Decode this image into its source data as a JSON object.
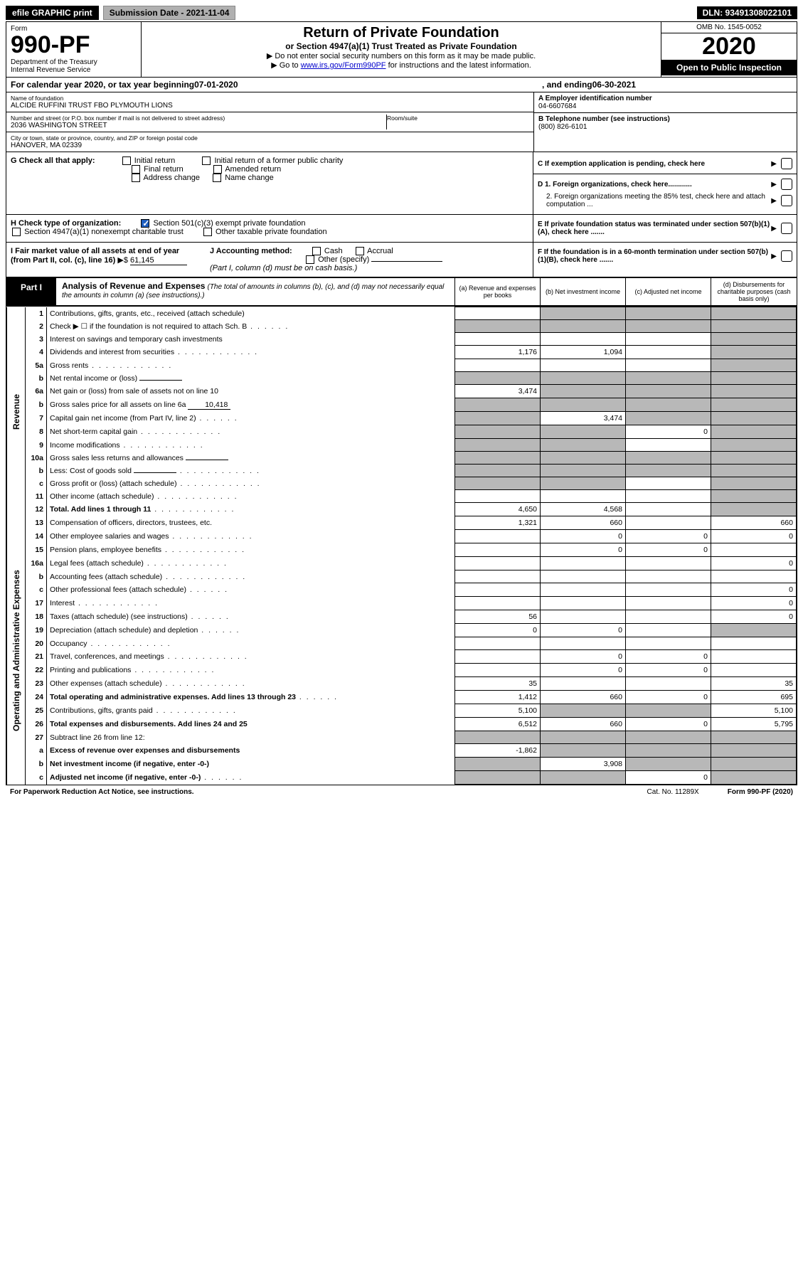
{
  "topbar": {
    "efile": "efile GRAPHIC print",
    "submission": "Submission Date - 2021-11-04",
    "dln": "DLN: 93491308022101"
  },
  "header": {
    "form_word": "Form",
    "form_number": "990-PF",
    "dept": "Department of the Treasury\nInternal Revenue Service",
    "title": "Return of Private Foundation",
    "subtitle": "or Section 4947(a)(1) Trust Treated as Private Foundation",
    "instr1": "▶ Do not enter social security numbers on this form as it may be made public.",
    "instr2_pre": "▶ Go to ",
    "instr2_link": "www.irs.gov/Form990PF",
    "instr2_post": " for instructions and the latest information.",
    "omb": "OMB No. 1545-0052",
    "year": "2020",
    "open": "Open to Public Inspection"
  },
  "calendar": {
    "pre": "For calendar year 2020, or tax year beginning ",
    "begin": "07-01-2020",
    "mid": ", and ending ",
    "end": "06-30-2021"
  },
  "info": {
    "name_label": "Name of foundation",
    "name": "ALCIDE RUFFINI TRUST FBO PLYMOUTH LIONS",
    "addr_label": "Number and street (or P.O. box number if mail is not delivered to street address)",
    "addr": "2036 WASHINGTON STREET",
    "room_label": "Room/suite",
    "city_label": "City or town, state or province, country, and ZIP or foreign postal code",
    "city": "HANOVER, MA  02339",
    "a_label": "A Employer identification number",
    "a_val": "04-6607684",
    "b_label": "B Telephone number (see instructions)",
    "b_val": "(800) 826-6101",
    "c_label": "C If exemption application is pending, check here",
    "d1": "D 1. Foreign organizations, check here............",
    "d2": "2. Foreign organizations meeting the 85% test, check here and attach computation ...",
    "e_label": "E  If private foundation status was terminated under section 507(b)(1)(A), check here .......",
    "f_label": "F  If the foundation is in a 60-month termination under section 507(b)(1)(B), check here ......."
  },
  "g": {
    "label": "G Check all that apply:",
    "opts": [
      "Initial return",
      "Final return",
      "Address change",
      "Initial return of a former public charity",
      "Amended return",
      "Name change"
    ]
  },
  "h": {
    "label": "H Check type of organization:",
    "opt1": "Section 501(c)(3) exempt private foundation",
    "opt2": "Section 4947(a)(1) nonexempt charitable trust",
    "opt3": "Other taxable private foundation"
  },
  "i": {
    "label": "I Fair market value of all assets at end of year (from Part II, col. (c), line 16)",
    "arrow": "▶$",
    "val": "61,145"
  },
  "j": {
    "label": "J Accounting method:",
    "cash": "Cash",
    "accrual": "Accrual",
    "other": "Other (specify)",
    "note": "(Part I, column (d) must be on cash basis.)"
  },
  "part1": {
    "label": "Part I",
    "title": "Analysis of Revenue and Expenses",
    "note": "(The total of amounts in columns (b), (c), and (d) may not necessarily equal the amounts in column (a) (see instructions).)",
    "col_a": "(a)   Revenue and expenses per books",
    "col_b": "(b)   Net investment income",
    "col_c": "(c)   Adjusted net income",
    "col_d": "(d)   Disbursements for charitable purposes (cash basis only)"
  },
  "side_labels": {
    "revenue": "Revenue",
    "expenses": "Operating and Administrative Expenses"
  },
  "rows": [
    {
      "n": "1",
      "d": "Contributions, gifts, grants, etc., received (attach schedule)",
      "a": "",
      "b": "g",
      "c": "g",
      "dd": "g"
    },
    {
      "n": "2",
      "d": "Check ▶ ☐ if the foundation is not required to attach Sch. B",
      "dots": 1,
      "a": "g",
      "b": "g",
      "c": "g",
      "dd": "g"
    },
    {
      "n": "3",
      "d": "Interest on savings and temporary cash investments",
      "a": "",
      "b": "",
      "c": "",
      "dd": "g"
    },
    {
      "n": "4",
      "d": "Dividends and interest from securities",
      "dots": 1,
      "a": "1,176",
      "b": "1,094",
      "c": "",
      "dd": "g"
    },
    {
      "n": "5a",
      "d": "Gross rents",
      "dots": 1,
      "a": "",
      "b": "",
      "c": "",
      "dd": "g"
    },
    {
      "n": "b",
      "d": "Net rental income or (loss)",
      "inline": "",
      "a": "g",
      "b": "g",
      "c": "g",
      "dd": "g"
    },
    {
      "n": "6a",
      "d": "Net gain or (loss) from sale of assets not on line 10",
      "a": "3,474",
      "b": "g",
      "c": "g",
      "dd": "g"
    },
    {
      "n": "b",
      "d": "Gross sales price for all assets on line 6a",
      "inline": "10,418",
      "a": "g",
      "b": "g",
      "c": "g",
      "dd": "g"
    },
    {
      "n": "7",
      "d": "Capital gain net income (from Part IV, line 2)",
      "dots": 1,
      "a": "g",
      "b": "3,474",
      "c": "g",
      "dd": "g"
    },
    {
      "n": "8",
      "d": "Net short-term capital gain",
      "dots": 1,
      "a": "g",
      "b": "g",
      "c": "0",
      "dd": "g"
    },
    {
      "n": "9",
      "d": "Income modifications",
      "dots": 1,
      "a": "g",
      "b": "g",
      "c": "",
      "dd": "g"
    },
    {
      "n": "10a",
      "d": "Gross sales less returns and allowances",
      "inline": "",
      "a": "g",
      "b": "g",
      "c": "g",
      "dd": "g"
    },
    {
      "n": "b",
      "d": "Less: Cost of goods sold",
      "dots": 1,
      "inline": "",
      "a": "g",
      "b": "g",
      "c": "g",
      "dd": "g"
    },
    {
      "n": "c",
      "d": "Gross profit or (loss) (attach schedule)",
      "dots": 1,
      "a": "g",
      "b": "g",
      "c": "",
      "dd": "g"
    },
    {
      "n": "11",
      "d": "Other income (attach schedule)",
      "dots": 1,
      "a": "",
      "b": "",
      "c": "",
      "dd": "g"
    },
    {
      "n": "12",
      "d": "Total. Add lines 1 through 11",
      "dots": 1,
      "bold": 1,
      "a": "4,650",
      "b": "4,568",
      "c": "",
      "dd": "g"
    },
    {
      "n": "13",
      "d": "Compensation of officers, directors, trustees, etc.",
      "a": "1,321",
      "b": "660",
      "c": "",
      "dd": "660"
    },
    {
      "n": "14",
      "d": "Other employee salaries and wages",
      "dots": 1,
      "a": "",
      "b": "0",
      "c": "0",
      "dd": "0"
    },
    {
      "n": "15",
      "d": "Pension plans, employee benefits",
      "dots": 1,
      "a": "",
      "b": "0",
      "c": "0",
      "dd": ""
    },
    {
      "n": "16a",
      "d": "Legal fees (attach schedule)",
      "dots": 1,
      "a": "",
      "b": "",
      "c": "",
      "dd": "0"
    },
    {
      "n": "b",
      "d": "Accounting fees (attach schedule)",
      "dots": 1,
      "a": "",
      "b": "",
      "c": "",
      "dd": ""
    },
    {
      "n": "c",
      "d": "Other professional fees (attach schedule)",
      "dots": 1,
      "a": "",
      "b": "",
      "c": "",
      "dd": "0"
    },
    {
      "n": "17",
      "d": "Interest",
      "dots": 1,
      "a": "",
      "b": "",
      "c": "",
      "dd": "0"
    },
    {
      "n": "18",
      "d": "Taxes (attach schedule) (see instructions)",
      "dots": 1,
      "a": "56",
      "b": "",
      "c": "",
      "dd": "0"
    },
    {
      "n": "19",
      "d": "Depreciation (attach schedule) and depletion",
      "dots": 1,
      "a": "0",
      "b": "0",
      "c": "",
      "dd": "g"
    },
    {
      "n": "20",
      "d": "Occupancy",
      "dots": 1,
      "a": "",
      "b": "",
      "c": "",
      "dd": ""
    },
    {
      "n": "21",
      "d": "Travel, conferences, and meetings",
      "dots": 1,
      "a": "",
      "b": "0",
      "c": "0",
      "dd": ""
    },
    {
      "n": "22",
      "d": "Printing and publications",
      "dots": 1,
      "a": "",
      "b": "0",
      "c": "0",
      "dd": ""
    },
    {
      "n": "23",
      "d": "Other expenses (attach schedule)",
      "dots": 1,
      "a": "35",
      "b": "",
      "c": "",
      "dd": "35"
    },
    {
      "n": "24",
      "d": "Total operating and administrative expenses. Add lines 13 through 23",
      "dots": 1,
      "bold": 1,
      "a": "1,412",
      "b": "660",
      "c": "0",
      "dd": "695"
    },
    {
      "n": "25",
      "d": "Contributions, gifts, grants paid",
      "dots": 1,
      "a": "5,100",
      "b": "g",
      "c": "g",
      "dd": "5,100"
    },
    {
      "n": "26",
      "d": "Total expenses and disbursements. Add lines 24 and 25",
      "bold": 1,
      "a": "6,512",
      "b": "660",
      "c": "0",
      "dd": "5,795"
    },
    {
      "n": "27",
      "d": "Subtract line 26 from line 12:",
      "a": "g",
      "b": "g",
      "c": "g",
      "dd": "g"
    },
    {
      "n": "a",
      "d": "Excess of revenue over expenses and disbursements",
      "bold": 1,
      "a": "-1,862",
      "b": "g",
      "c": "g",
      "dd": "g"
    },
    {
      "n": "b",
      "d": "Net investment income (if negative, enter -0-)",
      "bold": 1,
      "a": "g",
      "b": "3,908",
      "c": "g",
      "dd": "g"
    },
    {
      "n": "c",
      "d": "Adjusted net income (if negative, enter -0-)",
      "dots": 1,
      "bold": 1,
      "a": "g",
      "b": "g",
      "c": "0",
      "dd": "g"
    }
  ],
  "footer": {
    "left": "For Paperwork Reduction Act Notice, see instructions.",
    "mid": "Cat. No. 11289X",
    "right": "Form 990-PF (2020)"
  },
  "colors": {
    "grey": "#b8b8b8",
    "link": "#0000cc",
    "checked": "#2060c0"
  }
}
